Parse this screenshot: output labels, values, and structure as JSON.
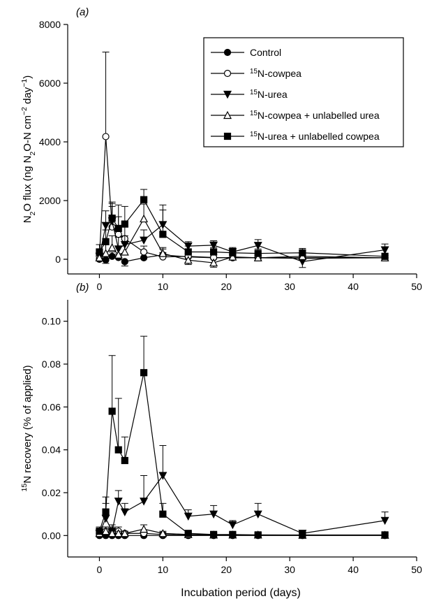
{
  "figure": {
    "xlabel": "Incubation period (days)"
  },
  "panels": [
    {
      "panel_label": "(a)",
      "ylabel_parts": [
        {
          "t": "N"
        },
        {
          "t": "2",
          "sub": true
        },
        {
          "t": "O flux (ng N"
        },
        {
          "t": "2",
          "sub": true
        },
        {
          "t": "O-N cm"
        },
        {
          "t": "−2",
          "sup": true
        },
        {
          "t": " day"
        },
        {
          "t": "−1",
          "sup": true
        },
        {
          "t": ")"
        }
      ]
    },
    {
      "panel_label": "(b)",
      "ylabel_parts": [
        {
          "t": "15",
          "sup": true
        },
        {
          "t": "N recovery (% of applied)"
        }
      ]
    }
  ],
  "legend": [
    {
      "marker": "filled-circle",
      "parts": [
        {
          "t": "Control"
        }
      ]
    },
    {
      "marker": "open-circle",
      "parts": [
        {
          "t": "15",
          "sup": true
        },
        {
          "t": "N-cowpea"
        }
      ]
    },
    {
      "marker": "filled-triangle-down",
      "parts": [
        {
          "t": "15",
          "sup": true
        },
        {
          "t": "N-urea"
        }
      ]
    },
    {
      "marker": "open-triangle-up",
      "parts": [
        {
          "t": "15",
          "sup": true
        },
        {
          "t": "N-cowpea + unlabelled urea"
        }
      ]
    },
    {
      "marker": "filled-square",
      "parts": [
        {
          "t": "15",
          "sup": true
        },
        {
          "t": "N-urea + unlabelled cowpea"
        }
      ]
    }
  ],
  "chart_data": [
    {
      "type": "line",
      "title": "(a)",
      "xlabel": "Incubation period (days)",
      "ylabel": "N2O flux (ng N2O-N cm-2 day-1)",
      "xlim": [
        -5,
        50
      ],
      "xticks": [
        0,
        10,
        20,
        30,
        40,
        50
      ],
      "ylim": [
        -500,
        8000
      ],
      "yticks": [
        0,
        2000,
        4000,
        6000,
        8000
      ],
      "legend_position": "top-right",
      "series": [
        {
          "name": "Control",
          "marker": "filled-circle",
          "x": [
            0,
            1,
            2,
            3,
            4,
            7,
            10,
            14,
            18,
            21,
            25,
            32,
            45
          ],
          "y": [
            0,
            -20,
            100,
            60,
            -80,
            50,
            150,
            80,
            50,
            60,
            50,
            30,
            50
          ],
          "err": [
            100,
            120,
            150,
            120,
            150,
            150,
            200,
            120,
            100,
            100,
            80,
            80,
            80
          ]
        },
        {
          "name": "15N-cowpea",
          "marker": "open-circle",
          "x": [
            0,
            1,
            2,
            3,
            4,
            7,
            10,
            14,
            18,
            21,
            25,
            32,
            45
          ],
          "y": [
            100,
            4180,
            1100,
            850,
            700,
            250,
            80,
            100,
            60,
            50,
            50,
            50,
            50
          ],
          "err": [
            200,
            2880,
            800,
            600,
            400,
            200,
            150,
            100,
            100,
            100,
            80,
            80,
            80
          ]
        },
        {
          "name": "15N-urea",
          "marker": "filled-triangle-down",
          "x": [
            0,
            1,
            2,
            3,
            4,
            7,
            10,
            14,
            18,
            21,
            25,
            32,
            45
          ],
          "y": [
            100,
            1150,
            1300,
            350,
            500,
            650,
            1180,
            450,
            480,
            250,
            470,
            -80,
            320
          ],
          "err": [
            200,
            500,
            500,
            400,
            300,
            350,
            500,
            150,
            150,
            150,
            200,
            200,
            200
          ]
        },
        {
          "name": "15N-cowpea + unlabelled urea",
          "marker": "open-triangle-up",
          "x": [
            0,
            1,
            2,
            3,
            4,
            7,
            10,
            14,
            18,
            21,
            25,
            32,
            45
          ],
          "y": [
            50,
            200,
            400,
            150,
            250,
            1380,
            200,
            -30,
            -120,
            80,
            50,
            100,
            50
          ],
          "err": [
            200,
            300,
            400,
            300,
            300,
            500,
            200,
            150,
            150,
            100,
            100,
            100,
            80
          ]
        },
        {
          "name": "15N-urea + unlabelled cowpea",
          "marker": "filled-square",
          "x": [
            0,
            1,
            2,
            3,
            4,
            7,
            10,
            14,
            18,
            21,
            25,
            32,
            45
          ],
          "y": [
            250,
            600,
            1400,
            1050,
            1200,
            2030,
            850,
            250,
            250,
            220,
            200,
            220,
            100
          ],
          "err": [
            250,
            400,
            550,
            800,
            600,
            350,
            1000,
            200,
            150,
            150,
            150,
            150,
            100
          ]
        }
      ]
    },
    {
      "type": "line",
      "title": "(b)",
      "xlabel": "Incubation period (days)",
      "ylabel": "15N recovery (% of applied)",
      "xlim": [
        -5,
        50
      ],
      "xticks": [
        0,
        10,
        20,
        30,
        40,
        50
      ],
      "ylim": [
        -0.01,
        0.11
      ],
      "yticks": [
        0.0,
        0.02,
        0.04,
        0.06,
        0.08,
        0.1
      ],
      "ytick_labels": [
        "0.00",
        "0.02",
        "0.04",
        "0.06",
        "0.08",
        "0.10"
      ],
      "series": [
        {
          "name": "Control",
          "marker": "filled-circle",
          "x": [
            0,
            1,
            2,
            3,
            4,
            7,
            10,
            14,
            18,
            21,
            25,
            32,
            45
          ],
          "y": [
            0,
            0,
            0,
            0,
            0,
            0,
            0,
            0,
            0,
            0,
            0,
            0,
            0
          ],
          "err": [
            0.001,
            0.001,
            0.001,
            0.001,
            0.001,
            0.001,
            0.001,
            0.001,
            0.001,
            0.001,
            0.001,
            0.001,
            0.001
          ]
        },
        {
          "name": "15N-cowpea",
          "marker": "open-circle",
          "x": [
            0,
            1,
            2,
            3,
            4,
            7,
            10,
            14,
            18,
            21,
            25,
            32,
            45
          ],
          "y": [
            0.001,
            0.002,
            0.002,
            0.002,
            0.001,
            0.001,
            0.0005,
            0.0003,
            0.0003,
            0.0003,
            0.0002,
            0.0002,
            0.0002
          ],
          "err": [
            0.001,
            0.002,
            0.002,
            0.002,
            0.001,
            0.001,
            0.001,
            0.001,
            0.001,
            0.001,
            0.001,
            0.001,
            0.001
          ]
        },
        {
          "name": "15N-urea",
          "marker": "filled-triangle-down",
          "x": [
            0,
            1,
            2,
            3,
            4,
            7,
            10,
            14,
            18,
            21,
            25,
            32,
            45
          ],
          "y": [
            0.001,
            0.008,
            0.002,
            0.016,
            0.011,
            0.016,
            0.028,
            0.009,
            0.01,
            0.005,
            0.01,
            0.001,
            0.007
          ],
          "err": [
            0.002,
            0.007,
            0.003,
            0.005,
            0.004,
            0.012,
            0.014,
            0.003,
            0.004,
            0.002,
            0.005,
            0.001,
            0.004
          ]
        },
        {
          "name": "15N-cowpea + unlabelled urea",
          "marker": "open-triangle-up",
          "x": [
            0,
            1,
            2,
            3,
            4,
            7,
            10,
            14,
            18,
            21,
            25,
            32,
            45
          ],
          "y": [
            0.001,
            0.002,
            0.001,
            0.001,
            0.001,
            0.003,
            0.001,
            0.0005,
            0.0003,
            0.0003,
            0.0003,
            0.0002,
            0.0002
          ],
          "err": [
            0.001,
            0.002,
            0.001,
            0.001,
            0.001,
            0.002,
            0.001,
            0.001,
            0.001,
            0.001,
            0.001,
            0.001,
            0.001
          ]
        },
        {
          "name": "15N-urea + unlabelled cowpea",
          "marker": "filled-square",
          "x": [
            0,
            1,
            2,
            3,
            4,
            7,
            10,
            14,
            18,
            21,
            25,
            32,
            45
          ],
          "y": [
            0.002,
            0.011,
            0.058,
            0.04,
            0.035,
            0.076,
            0.01,
            0.001,
            0.0005,
            0.0005,
            0.0003,
            0.0003,
            0.0003
          ],
          "err": [
            0.002,
            0.007,
            0.026,
            0.024,
            0.011,
            0.017,
            0.005,
            0.001,
            0.001,
            0.001,
            0.001,
            0.001,
            0.001
          ]
        }
      ]
    }
  ]
}
